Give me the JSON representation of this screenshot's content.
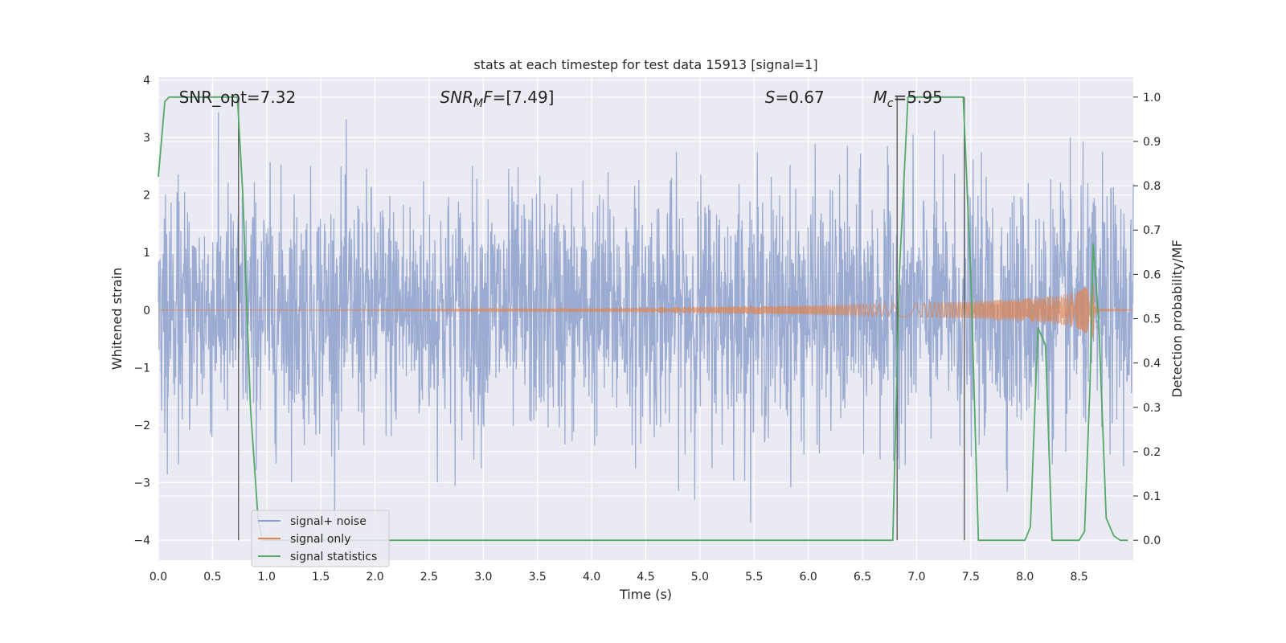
{
  "chart_data": {
    "type": "line",
    "title": "stats at each timestep for test data 15913 [signal=1]",
    "xlabel": "Time (s)",
    "ylabel_left": "Whitened strain",
    "ylabel_right": "Detection probability/MF",
    "xlim": [
      0.0,
      9.0
    ],
    "ylim_left": [
      -4.35,
      4.05
    ],
    "ylim_right": [
      -0.045,
      1.045
    ],
    "x_ticks": [
      0.0,
      0.5,
      1.0,
      1.5,
      2.0,
      2.5,
      3.0,
      3.5,
      4.0,
      4.5,
      5.0,
      5.5,
      6.0,
      6.5,
      7.0,
      7.5,
      8.0,
      8.5
    ],
    "x_tick_labels": [
      "0.0",
      "0.5",
      "1.0",
      "1.5",
      "2.0",
      "2.5",
      "3.0",
      "3.5",
      "4.0",
      "4.5",
      "5.0",
      "5.5",
      "6.0",
      "6.5",
      "7.0",
      "7.5",
      "8.0",
      "8.5"
    ],
    "y_left_ticks": [
      -4,
      -3,
      -2,
      -1,
      0,
      1,
      2,
      3,
      4
    ],
    "y_left_tick_labels": [
      "−4",
      "−3",
      "−2",
      "−1",
      "0",
      "1",
      "2",
      "3",
      "4"
    ],
    "y_right_ticks": [
      0.0,
      0.1,
      0.2,
      0.3,
      0.4,
      0.5,
      0.6,
      0.7,
      0.8,
      0.9,
      1.0
    ],
    "y_right_tick_labels": [
      "0.0",
      "0.1",
      "0.2",
      "0.3",
      "0.4",
      "0.5",
      "0.6",
      "0.7",
      "0.8",
      "0.9",
      "1.0"
    ],
    "grid": true,
    "legend_placement": "lower-left",
    "series": [
      {
        "name": "signal+ noise",
        "axis": "left",
        "color": "#8da0cb",
        "description_values": "dense noise, approx. range -3.5 to 3.5, sampled at 2048 Hz over 0-9 s"
      },
      {
        "name": "signal only",
        "axis": "left",
        "color": "#dd8452",
        "envelope": {
          "x": [
            0.0,
            2.0,
            4.0,
            5.0,
            6.0,
            6.5,
            7.0,
            7.5,
            8.0,
            8.3,
            8.5,
            8.6,
            8.63,
            8.66,
            9.0
          ],
          "amp": [
            0.0,
            0.01,
            0.03,
            0.06,
            0.08,
            0.1,
            0.12,
            0.15,
            0.2,
            0.25,
            0.33,
            0.45,
            0.5,
            0.03,
            0.0
          ]
        }
      },
      {
        "name": "signal statistics",
        "axis": "right",
        "color": "#55a868",
        "x": [
          0.0,
          0.06,
          0.1,
          0.15,
          0.2,
          0.3,
          0.4,
          0.5,
          0.6,
          0.7,
          0.73,
          0.78,
          0.85,
          0.92,
          0.96,
          1.0,
          2.0,
          3.0,
          4.0,
          5.0,
          6.0,
          6.5,
          6.73,
          6.78,
          6.84,
          6.92,
          7.0,
          7.2,
          7.4,
          7.43,
          7.5,
          7.57,
          7.6,
          8.0,
          8.05,
          8.12,
          8.19,
          8.25,
          8.3,
          8.5,
          8.55,
          8.6,
          8.63,
          8.68,
          8.75,
          8.82,
          8.88,
          8.95
        ],
        "y": [
          0.82,
          0.99,
          1.0,
          1.0,
          1.0,
          1.0,
          1.0,
          1.0,
          1.0,
          1.0,
          1.0,
          0.78,
          0.3,
          0.05,
          0.0,
          0.0,
          0.0,
          0.0,
          0.0,
          0.0,
          0.0,
          0.0,
          0.0,
          0.0,
          0.6,
          1.0,
          1.0,
          1.0,
          1.0,
          1.0,
          0.6,
          0.0,
          0.0,
          0.0,
          0.03,
          0.48,
          0.44,
          0.0,
          0.0,
          0.0,
          0.02,
          0.35,
          0.67,
          0.5,
          0.05,
          0.01,
          0.0,
          0.0
        ]
      }
    ],
    "vertical_lines_x": [
      0.74,
      6.82,
      7.44
    ],
    "annotations": [
      {
        "x": 0.19,
        "y_left": 3.6,
        "text_parts": [
          {
            "t": "SNR_opt=7.32",
            "style": "normal"
          }
        ]
      },
      {
        "x": 2.6,
        "y_left": 3.6,
        "text_parts": [
          {
            "t": "SNR",
            "style": "italic"
          },
          {
            "t": "M",
            "style": "italic-sub"
          },
          {
            "t": "F",
            "style": "italic"
          },
          {
            "t": "=[7.49]",
            "style": "normal"
          }
        ]
      },
      {
        "x": 5.6,
        "y_left": 3.6,
        "text_parts": [
          {
            "t": "S",
            "style": "italic"
          },
          {
            "t": "=0.67",
            "style": "normal"
          }
        ]
      },
      {
        "x": 6.6,
        "y_left": 3.6,
        "text_parts": [
          {
            "t": "M",
            "style": "italic"
          },
          {
            "t": "c",
            "style": "italic-sub"
          },
          {
            "t": "=5.95",
            "style": "normal"
          }
        ]
      }
    ]
  }
}
